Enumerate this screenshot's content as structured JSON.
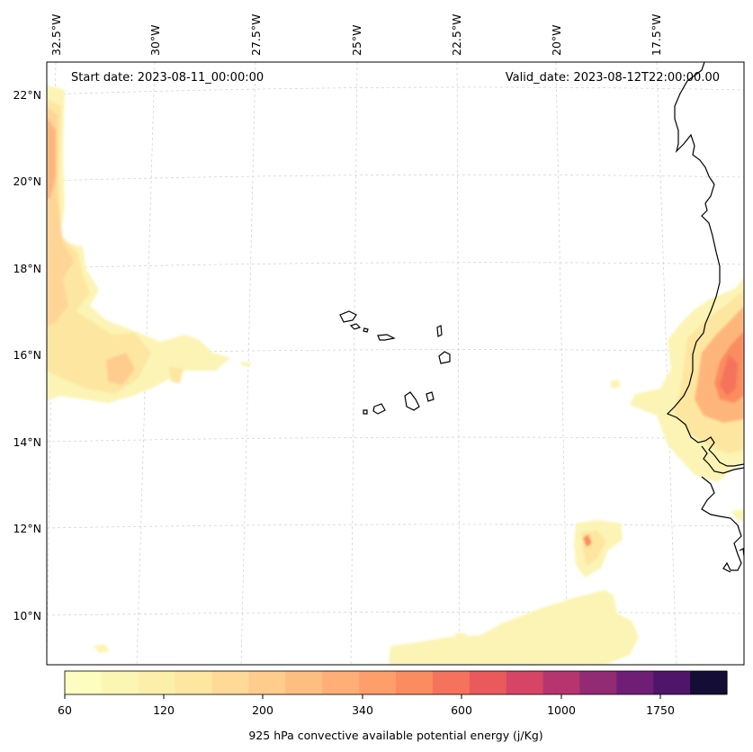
{
  "header": {
    "start_date": "Start date: 2023-08-11_00:00:00",
    "valid_date": "Valid_date: 2023-08-12T22:00:00.00"
  },
  "map": {
    "lon_labels": [
      "32.5°W",
      "30°W",
      "27.5°W",
      "25°W",
      "22.5°W",
      "20°W",
      "17.5°W"
    ],
    "lat_labels": [
      "22°N",
      "20°N",
      "18°N",
      "16°N",
      "14°N",
      "12°N",
      "10°N"
    ],
    "extent": {
      "lon_min": -32.6,
      "lon_max": -15.1,
      "lat_min": 8.9,
      "lat_max": 22.6
    },
    "gridlines": true
  },
  "colorbar": {
    "tick_labels": [
      "60",
      "120",
      "200",
      "340",
      "600",
      "1000",
      "1750"
    ],
    "label": "925 hPa convective available potential energy (j/Kg)",
    "colors": [
      "#fcfdbf",
      "#fcf6b4",
      "#fcefa9",
      "#fde6a0",
      "#fed997",
      "#fecc8d",
      "#febd81",
      "#feae76",
      "#fd9e6b",
      "#fb8c61",
      "#f5735c",
      "#ea5a5d",
      "#d64565",
      "#b6356f",
      "#932a74",
      "#6e1f75",
      "#4f1569",
      "#140e36"
    ]
  }
}
